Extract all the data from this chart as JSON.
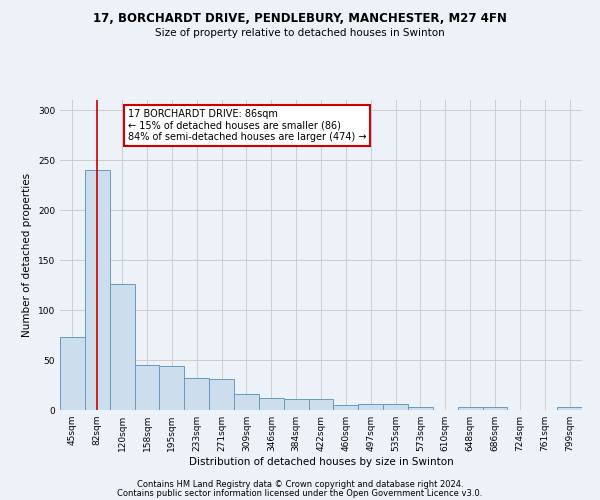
{
  "title1": "17, BORCHARDT DRIVE, PENDLEBURY, MANCHESTER, M27 4FN",
  "title2": "Size of property relative to detached houses in Swinton",
  "xlabel": "Distribution of detached houses by size in Swinton",
  "ylabel": "Number of detached properties",
  "categories": [
    "45sqm",
    "82sqm",
    "120sqm",
    "158sqm",
    "195sqm",
    "233sqm",
    "271sqm",
    "309sqm",
    "346sqm",
    "384sqm",
    "422sqm",
    "460sqm",
    "497sqm",
    "535sqm",
    "573sqm",
    "610sqm",
    "648sqm",
    "686sqm",
    "724sqm",
    "761sqm",
    "799sqm"
  ],
  "values": [
    73,
    240,
    126,
    45,
    44,
    32,
    31,
    16,
    12,
    11,
    11,
    5,
    6,
    6,
    3,
    0,
    3,
    3,
    0,
    0,
    3
  ],
  "bar_color": "#ccdded",
  "bar_edge_color": "#6699bb",
  "grid_color": "#cccccc",
  "vline_x": 1,
  "vline_color": "#cc0000",
  "annotation_text": "17 BORCHARDT DRIVE: 86sqm\n← 15% of detached houses are smaller (86)\n84% of semi-detached houses are larger (474) →",
  "annotation_box_color": "#ffffff",
  "annotation_box_edge": "#cc0000",
  "footnote1": "Contains HM Land Registry data © Crown copyright and database right 2024.",
  "footnote2": "Contains public sector information licensed under the Open Government Licence v3.0.",
  "ylim": [
    0,
    310
  ],
  "background_color": "#edf2f8"
}
